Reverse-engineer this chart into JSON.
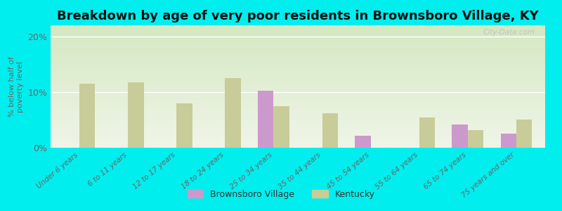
{
  "title": "Breakdown by age of very poor residents in Brownsboro Village, KY",
  "ylabel": "% below half of\npoverty level",
  "categories": [
    "Under 6 years",
    "6 to 11 years",
    "12 to 17 years",
    "18 to 24 years",
    "25 to 34 years",
    "35 to 44 years",
    "45 to 54 years",
    "55 to 64 years",
    "65 to 74 years",
    "75 years and over"
  ],
  "brownsboro_values": [
    null,
    null,
    null,
    null,
    10.2,
    null,
    2.2,
    null,
    4.2,
    2.5
  ],
  "kentucky_values": [
    11.5,
    11.8,
    8.0,
    12.5,
    7.5,
    6.2,
    null,
    5.5,
    3.2,
    5.0
  ],
  "brownsboro_color": "#cc99cc",
  "kentucky_color": "#c8cc99",
  "background_color": "#00eeee",
  "plot_bg_top": "#d4e8c2",
  "plot_bg_bottom": "#f0f5e8",
  "ylim": [
    0,
    22
  ],
  "yticks": [
    0,
    10,
    20
  ],
  "ytick_labels": [
    "0%",
    "10%",
    "20%"
  ],
  "bar_width": 0.32,
  "title_fontsize": 13,
  "watermark": "City-Data.com"
}
